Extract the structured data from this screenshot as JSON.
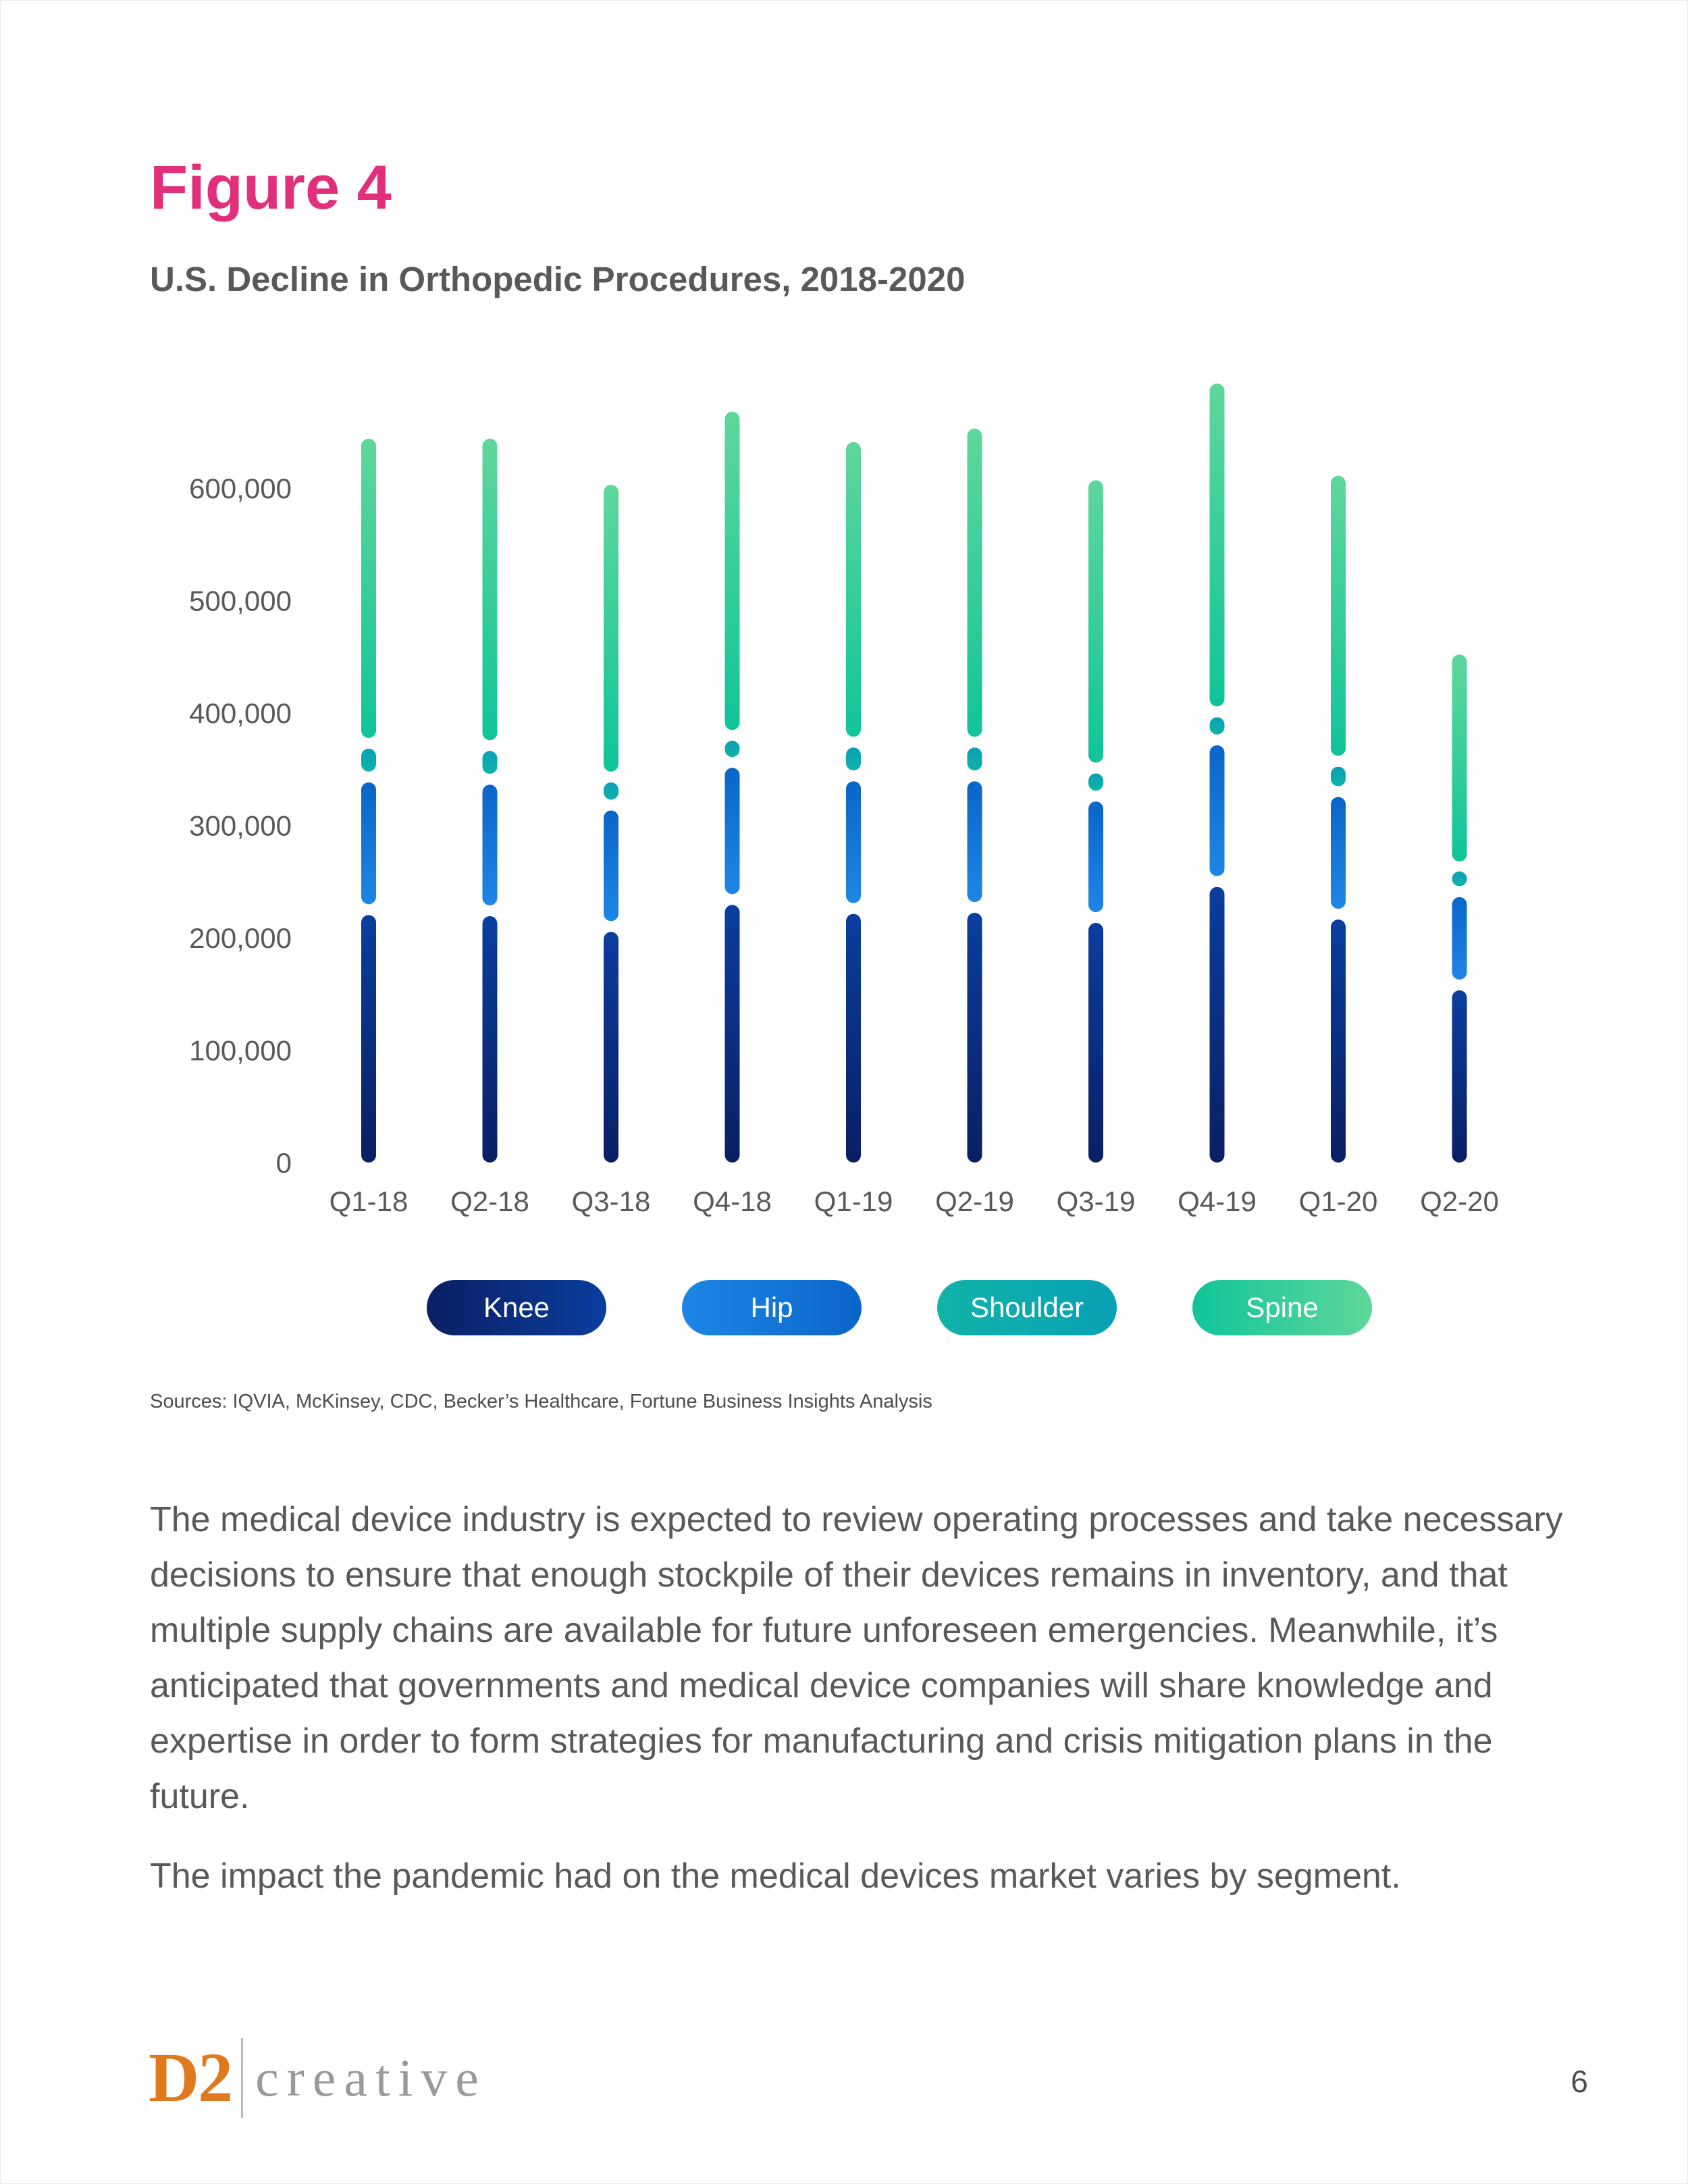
{
  "heading": "Figure 4",
  "colors": {
    "heading": "#e12f7c",
    "knee_top": "#0a3e9e",
    "knee_bottom": "#0a1f63",
    "hip_top": "#0a66c8",
    "hip_bottom": "#1e86e6",
    "shoulder_top": "#0aa0b5",
    "shoulder_bottom": "#10b3a8",
    "spine_top": "#5fd79b",
    "spine_bottom": "#10c49a",
    "logo": "#e07a1f"
  },
  "chart_data": {
    "type": "bar",
    "stacked": true,
    "title": "U.S. Decline in Orthopedic Procedures, 2018-2020",
    "xlabel": "",
    "ylabel": "",
    "ylim": [
      0,
      700000
    ],
    "yticks": [
      0,
      100000,
      200000,
      300000,
      400000,
      500000,
      600000
    ],
    "ytick_labels": [
      "0",
      "100,000",
      "200,000",
      "300,000",
      "400,000",
      "500,000",
      "600,000"
    ],
    "categories": [
      "Q1-18",
      "Q2-18",
      "Q3-18",
      "Q4-18",
      "Q1-19",
      "Q2-19",
      "Q3-19",
      "Q4-19",
      "Q1-20",
      "Q2-20"
    ],
    "series": [
      {
        "name": "Knee",
        "values": [
          225000,
          224000,
          210000,
          234000,
          226000,
          227000,
          218000,
          250000,
          221000,
          158000
        ]
      },
      {
        "name": "Hip",
        "values": [
          118000,
          117000,
          108000,
          122000,
          118000,
          117000,
          108000,
          126000,
          109000,
          83000
        ]
      },
      {
        "name": "Shoulder",
        "values": [
          30000,
          30000,
          25000,
          24000,
          30000,
          30000,
          25000,
          25000,
          27000,
          22000
        ]
      },
      {
        "name": "Spine",
        "values": [
          271000,
          273000,
          260000,
          288000,
          267000,
          279000,
          256000,
          292000,
          254000,
          189000
        ]
      }
    ],
    "legend": [
      "Knee",
      "Hip",
      "Shoulder",
      "Spine"
    ],
    "legend_position": "bottom-center",
    "grid": false
  },
  "sources": "Sources: IQVIA, McKinsey, CDC, Becker’s Healthcare, Fortune Business Insights Analysis",
  "body": {
    "paragraph1": "The medical device industry is expected to review operating processes and take necessary decisions to ensure that enough stockpile of their devices remains in inventory, and that multiple supply chains are available for future unforeseen emergencies. Meanwhile, it’s anticipated that governments and medical device companies will share knowledge and expertise in order to form strategies for manufacturing and crisis mitigation plans in the future.",
    "paragraph2": "The impact the pandemic had on the medical devices market varies by segment."
  },
  "footer": {
    "logo_mark": "D2",
    "logo_word": "creative",
    "page_number": "6"
  }
}
